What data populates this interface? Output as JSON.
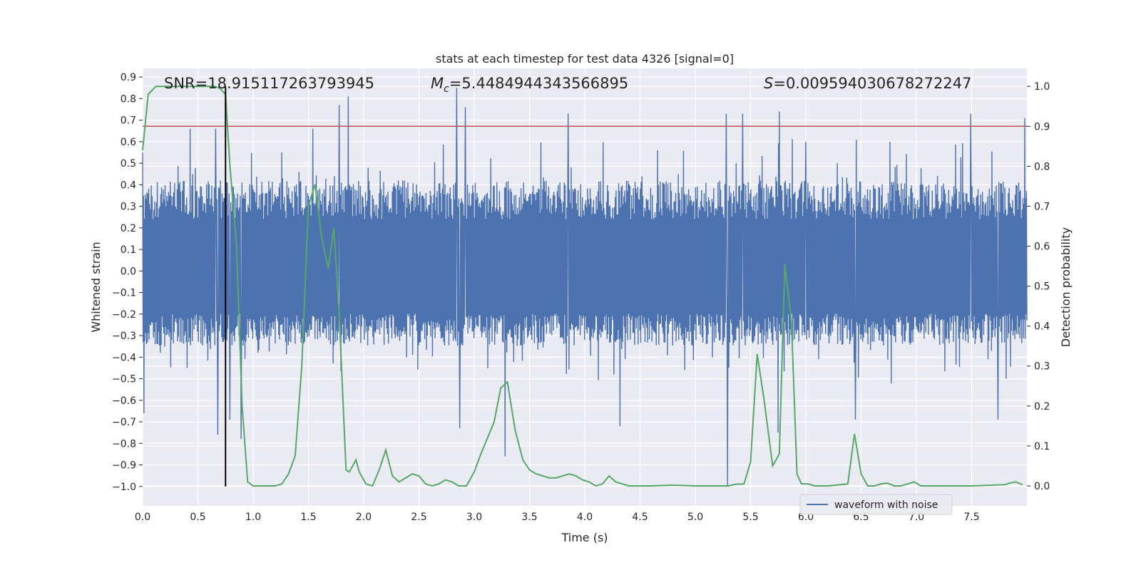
{
  "chart_data": {
    "type": "line",
    "title": "stats at each timestep for test data 4326 [signal=0]",
    "xlabel": "Time (s)",
    "ylabel_left": "Whitened strain",
    "ylabel_right": "Detection probability",
    "xlim": [
      0.0,
      8.0
    ],
    "ylim_left": [
      -1.09,
      0.94
    ],
    "ylim_right": [
      -0.05,
      1.045
    ],
    "x_ticks": [
      "0.0",
      "0.5",
      "1.0",
      "1.5",
      "2.0",
      "2.5",
      "3.0",
      "3.5",
      "4.0",
      "4.5",
      "5.0",
      "5.5",
      "6.0",
      "6.5",
      "7.0",
      "7.5"
    ],
    "x_tick_values": [
      0.0,
      0.5,
      1.0,
      1.5,
      2.0,
      2.5,
      3.0,
      3.5,
      4.0,
      4.5,
      5.0,
      5.5,
      6.0,
      6.5,
      7.0,
      7.5
    ],
    "y_left_ticks": [
      "0.9",
      "0.8",
      "0.7",
      "0.6",
      "0.5",
      "0.4",
      "0.3",
      "0.2",
      "0.1",
      "0.0",
      "−0.1",
      "−0.2",
      "−0.3",
      "−0.4",
      "−0.5",
      "−0.6",
      "−0.7",
      "−0.8",
      "−0.9",
      "−1.0"
    ],
    "y_left_tick_values": [
      0.9,
      0.8,
      0.7,
      0.6,
      0.5,
      0.4,
      0.3,
      0.2,
      0.1,
      0.0,
      -0.1,
      -0.2,
      -0.3,
      -0.4,
      -0.5,
      -0.6,
      -0.7,
      -0.8,
      -0.9,
      -1.0
    ],
    "y_right_ticks": [
      "1.0",
      "0.9",
      "0.8",
      "0.7",
      "0.6",
      "0.5",
      "0.4",
      "0.3",
      "0.2",
      "0.1",
      "0.0"
    ],
    "y_right_tick_values": [
      1.0,
      0.9,
      0.8,
      0.7,
      0.6,
      0.5,
      0.4,
      0.3,
      0.2,
      0.1,
      0.0
    ],
    "annotations": {
      "snr": "SNR=18.915117263793945",
      "mc_symbol": "M",
      "mc_sub": "c",
      "mc_value": "=5.4484944343566895",
      "s_symbol": "S",
      "s_value": "=0.009594030678272247"
    },
    "threshold_right": 0.9,
    "marker_time": 0.75,
    "legend": [
      {
        "label": "waveform with noise",
        "color": "#4c72b0"
      }
    ],
    "legend_loc": "lower-right",
    "colors": {
      "waveform": "#4c72b0",
      "probability": "#55a868",
      "threshold": "#c44e52",
      "marker": "#000000",
      "background": "#eaeaf2",
      "grid": "#ffffff"
    },
    "waveform": {
      "name": "waveform with noise",
      "n_samples": 2048,
      "typical_max": 0.4,
      "typical_min": -0.33,
      "peaks": [
        {
          "t": 0.01,
          "v": -0.66
        },
        {
          "t": 0.0,
          "v": 0.55
        },
        {
          "t": 0.43,
          "v": 0.66
        },
        {
          "t": 0.66,
          "v": 0.66
        },
        {
          "t": 0.68,
          "v": -0.76
        },
        {
          "t": 0.79,
          "v": -0.69
        },
        {
          "t": 0.89,
          "v": -0.78
        },
        {
          "t": 1.26,
          "v": 0.55
        },
        {
          "t": 1.54,
          "v": 0.66
        },
        {
          "t": 1.78,
          "v": 0.77
        },
        {
          "t": 1.86,
          "v": 0.81
        },
        {
          "t": 2.84,
          "v": 0.85
        },
        {
          "t": 2.87,
          "v": -0.73
        },
        {
          "t": 2.92,
          "v": 0.76
        },
        {
          "t": 3.28,
          "v": -0.86
        },
        {
          "t": 3.85,
          "v": 0.73
        },
        {
          "t": 4.32,
          "v": -0.72
        },
        {
          "t": 5.28,
          "v": 0.73
        },
        {
          "t": 5.29,
          "v": -1.0
        },
        {
          "t": 5.43,
          "v": 0.73
        },
        {
          "t": 5.75,
          "v": -0.75
        },
        {
          "t": 5.76,
          "v": 0.74
        },
        {
          "t": 6.0,
          "v": 0.6
        },
        {
          "t": 6.45,
          "v": -0.69
        },
        {
          "t": 7.49,
          "v": 0.73
        },
        {
          "t": 7.74,
          "v": -0.69
        },
        {
          "t": 7.98,
          "v": 0.71
        }
      ]
    },
    "probability": {
      "name": "detection probability",
      "x": [
        0.0,
        0.05,
        0.12,
        0.3,
        0.5,
        0.65,
        0.7,
        0.75,
        0.79,
        0.82,
        0.85,
        0.9,
        0.95,
        1.0,
        1.2,
        1.26,
        1.32,
        1.38,
        1.44,
        1.5,
        1.56,
        1.62,
        1.68,
        1.73,
        1.78,
        1.84,
        1.87,
        1.93,
        1.96,
        2.02,
        2.08,
        2.14,
        2.2,
        2.26,
        2.32,
        2.38,
        2.44,
        2.5,
        2.56,
        2.62,
        2.68,
        2.74,
        2.8,
        2.86,
        2.93,
        3.0,
        3.06,
        3.12,
        3.18,
        3.24,
        3.3,
        3.37,
        3.44,
        3.5,
        3.56,
        3.62,
        3.68,
        3.74,
        3.8,
        3.86,
        3.92,
        3.98,
        4.04,
        4.1,
        4.16,
        4.22,
        4.28,
        4.34,
        4.4,
        4.46,
        4.52,
        4.6,
        4.8,
        5.0,
        5.2,
        5.3,
        5.36,
        5.44,
        5.5,
        5.56,
        5.62,
        5.7,
        5.76,
        5.81,
        5.87,
        5.92,
        5.96,
        6.02,
        6.08,
        6.2,
        6.38,
        6.44,
        6.5,
        6.56,
        6.62,
        6.68,
        6.74,
        6.8,
        6.86,
        6.92,
        6.98,
        7.04,
        7.1,
        7.3,
        7.5,
        7.8,
        7.84,
        7.9,
        7.96
      ],
      "y": [
        0.84,
        0.98,
        1.0,
        1.0,
        1.0,
        1.0,
        0.995,
        0.98,
        0.8,
        0.7,
        0.6,
        0.2,
        0.01,
        0.0,
        0.0,
        0.005,
        0.03,
        0.075,
        0.3,
        0.7,
        0.755,
        0.62,
        0.545,
        0.645,
        0.42,
        0.04,
        0.035,
        0.065,
        0.035,
        0.005,
        0.0,
        0.04,
        0.09,
        0.025,
        0.01,
        0.02,
        0.03,
        0.025,
        0.005,
        0.0,
        0.005,
        0.015,
        0.01,
        0.0,
        0.0,
        0.035,
        0.08,
        0.12,
        0.16,
        0.245,
        0.26,
        0.14,
        0.065,
        0.04,
        0.03,
        0.025,
        0.02,
        0.02,
        0.025,
        0.03,
        0.025,
        0.015,
        0.01,
        0.0,
        0.005,
        0.025,
        0.01,
        0.005,
        0.0,
        0.0,
        0.0,
        0.0,
        0.002,
        0.0,
        0.0,
        0.0,
        0.004,
        0.005,
        0.06,
        0.33,
        0.22,
        0.05,
        0.08,
        0.555,
        0.41,
        0.03,
        0.005,
        0.005,
        0.0,
        0.0,
        0.005,
        0.13,
        0.03,
        0.0,
        0.0,
        0.005,
        0.007,
        0.0,
        0.0,
        0.005,
        0.01,
        0.0,
        0.0,
        0.0,
        0.0,
        0.003,
        0.007,
        0.01,
        0.003
      ]
    }
  }
}
